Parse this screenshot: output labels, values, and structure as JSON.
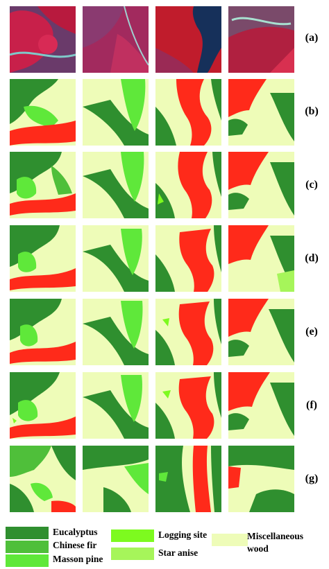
{
  "row_labels": [
    "(a)",
    "(b)",
    "(c)",
    "(d)",
    "(e)",
    "(f)",
    "(g)"
  ],
  "classes": {
    "eucalyptus": {
      "label": "Eucalyptus",
      "color": "#2f8f2f"
    },
    "chinese_fir": {
      "label": "Chinese fir",
      "color": "#4fbf3a"
    },
    "masson_pine": {
      "label": "Masson pine",
      "color": "#5fe83a"
    },
    "logging_site": {
      "label": "Logging site",
      "color": "#7dfa1f"
    },
    "star_anise": {
      "label": "Star anise",
      "color": "#a6f55a"
    },
    "misc_wood": {
      "label": "Miscellaneous wood",
      "color": "#eefcb8"
    },
    "red_class": {
      "color": "#ff2a1a"
    }
  },
  "legend": {
    "eucalyptus": "Eucalyptus",
    "chinese_fir": "Chinese fir",
    "masson_pine": "Masson pine",
    "logging_site": "Logging site",
    "star_anise": "Star anise",
    "misc_line1": "Miscellaneous",
    "misc_line2": "wood"
  }
}
